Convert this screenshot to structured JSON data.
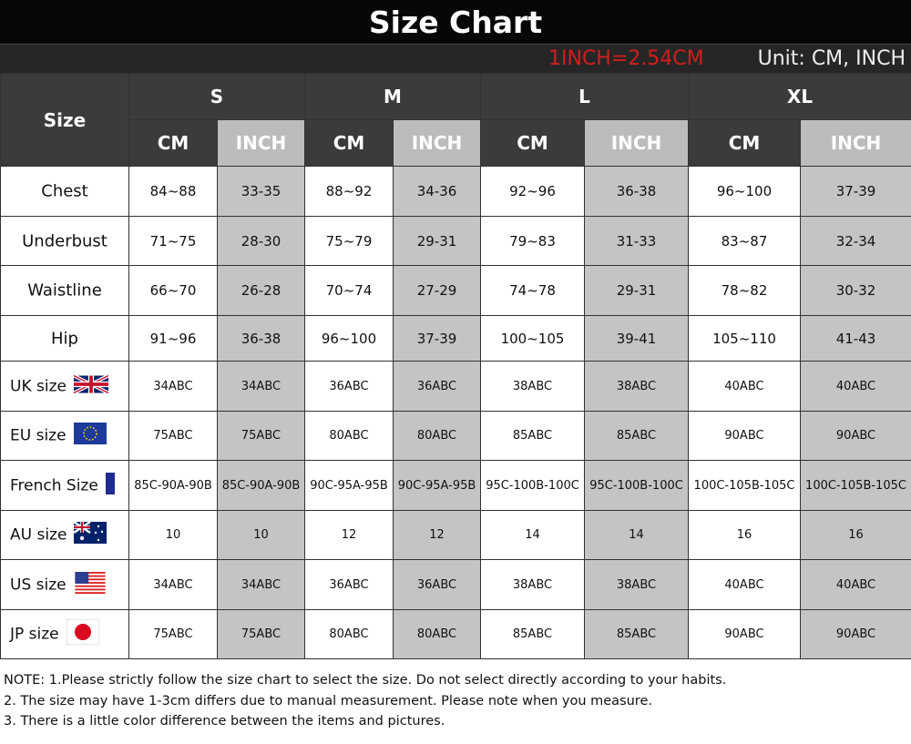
{
  "title": "Size Chart",
  "conversion": "1INCH=2.54CM",
  "unit": "Unit: CM, INCH",
  "header": {
    "corner": "Size",
    "sizes": [
      "S",
      "M",
      "L",
      "XL"
    ],
    "units": [
      "CM",
      "INCH"
    ]
  },
  "rows": [
    {
      "label": "Chest",
      "values": [
        "84~88",
        "33-35",
        "88~92",
        "34-36",
        "92~96",
        "36-38",
        "96~100",
        "37-39"
      ]
    },
    {
      "label": "Underbust",
      "values": [
        "71~75",
        "28-30",
        "75~79",
        "29-31",
        "79~83",
        "31-33",
        "83~87",
        "32-34"
      ]
    },
    {
      "label": "Waistline",
      "values": [
        "66~70",
        "26-28",
        "70~74",
        "27-29",
        "74~78",
        "29-31",
        "78~82",
        "30-32"
      ]
    },
    {
      "label": "Hip",
      "values": [
        "91~96",
        "36-38",
        "96~100",
        "37-39",
        "100~105",
        "39-41",
        "105~110",
        "41-43"
      ]
    },
    {
      "label": "UK size",
      "flag": "uk-flag-icon",
      "values": [
        "34ABC",
        "34ABC",
        "36ABC",
        "36ABC",
        "38ABC",
        "38ABC",
        "40ABC",
        "40ABC"
      ]
    },
    {
      "label": "EU size",
      "flag": "eu-flag-icon",
      "values": [
        "75ABC",
        "75ABC",
        "80ABC",
        "80ABC",
        "85ABC",
        "85ABC",
        "90ABC",
        "90ABC"
      ]
    },
    {
      "label": "French Size",
      "flag": "france-flag-icon",
      "values": [
        "85C-90A-90B",
        "85C-90A-90B",
        "90C-95A-95B",
        "90C-95A-95B",
        "95C-100B-100C",
        "95C-100B-100C",
        "100C-105B-105C",
        "100C-105B-105C"
      ]
    },
    {
      "label": "AU size",
      "flag": "australia-flag-icon",
      "values": [
        "10",
        "10",
        "12",
        "12",
        "14",
        "14",
        "16",
        "16"
      ]
    },
    {
      "label": "US size",
      "flag": "us-flag-icon",
      "values": [
        "34ABC",
        "34ABC",
        "36ABC",
        "36ABC",
        "38ABC",
        "38ABC",
        "40ABC",
        "40ABC"
      ]
    },
    {
      "label": "JP size",
      "flag": "japan-flag-icon",
      "values": [
        "75ABC",
        "75ABC",
        "80ABC",
        "80ABC",
        "85ABC",
        "85ABC",
        "90ABC",
        "90ABC"
      ]
    }
  ],
  "notes": [
    "NOTE: 1.Please strictly follow the size chart to select the size. Do not select directly according to your habits.",
    "2. The size may have 1-3cm differs due to manual measurement. Please note when you measure.",
    "3. There is a little color difference between the items and pictures."
  ],
  "colors": {
    "header_dark": "#3b3b3b",
    "inch_gray": "#c4c4c4",
    "conversion_red": "#d21d1d"
  }
}
